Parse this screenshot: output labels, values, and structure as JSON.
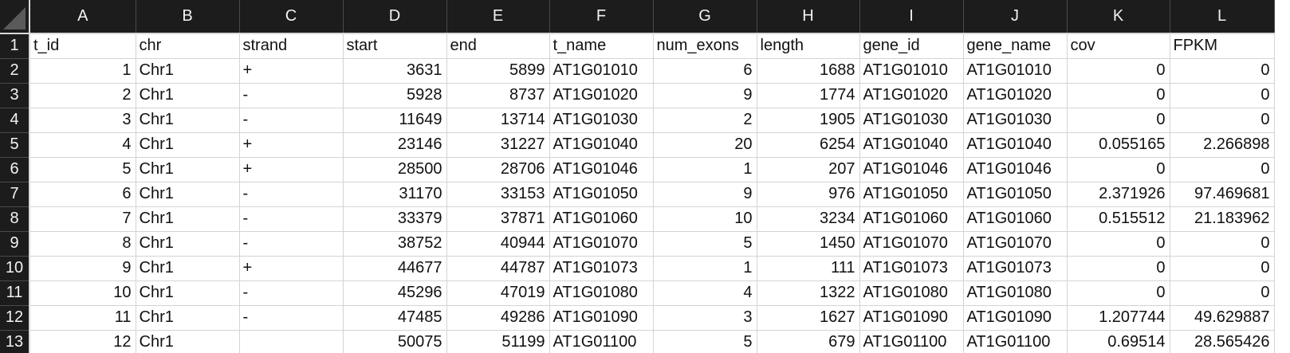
{
  "spreadsheet": {
    "column_letters": [
      "A",
      "B",
      "C",
      "D",
      "E",
      "F",
      "G",
      "H",
      "I",
      "J",
      "K",
      "L"
    ],
    "column_alignment": [
      "num",
      "txt",
      "txt",
      "num",
      "num",
      "txt",
      "num",
      "num",
      "txt",
      "txt",
      "num",
      "num"
    ],
    "header_values": [
      "t_id",
      "chr",
      "strand",
      "start",
      "end",
      "t_name",
      "num_exons",
      "length",
      "gene_id",
      "gene_name",
      "cov",
      "FPKM"
    ],
    "rows": [
      {
        "row_number": "1",
        "cells": [
          "t_id",
          "chr",
          "strand",
          "start",
          "end",
          "t_name",
          "num_exons",
          "length",
          "gene_id",
          "gene_name",
          "cov",
          "FPKM"
        ]
      },
      {
        "row_number": "2",
        "cells": [
          "1",
          "Chr1",
          "+",
          "3631",
          "5899",
          "AT1G01010",
          "6",
          "1688",
          "AT1G01010",
          "AT1G01010",
          "0",
          "0"
        ]
      },
      {
        "row_number": "3",
        "cells": [
          "2",
          "Chr1",
          "-",
          "5928",
          "8737",
          "AT1G01020",
          "9",
          "1774",
          "AT1G01020",
          "AT1G01020",
          "0",
          "0"
        ]
      },
      {
        "row_number": "4",
        "cells": [
          "3",
          "Chr1",
          "-",
          "11649",
          "13714",
          "AT1G01030",
          "2",
          "1905",
          "AT1G01030",
          "AT1G01030",
          "0",
          "0"
        ]
      },
      {
        "row_number": "5",
        "cells": [
          "4",
          "Chr1",
          "+",
          "23146",
          "31227",
          "AT1G01040",
          "20",
          "6254",
          "AT1G01040",
          "AT1G01040",
          "0.055165",
          "2.266898"
        ]
      },
      {
        "row_number": "6",
        "cells": [
          "5",
          "Chr1",
          "+",
          "28500",
          "28706",
          "AT1G01046",
          "1",
          "207",
          "AT1G01046",
          "AT1G01046",
          "0",
          "0"
        ]
      },
      {
        "row_number": "7",
        "cells": [
          "6",
          "Chr1",
          "-",
          "31170",
          "33153",
          "AT1G01050",
          "9",
          "976",
          "AT1G01050",
          "AT1G01050",
          "2.371926",
          "97.469681"
        ]
      },
      {
        "row_number": "8",
        "cells": [
          "7",
          "Chr1",
          "-",
          "33379",
          "37871",
          "AT1G01060",
          "10",
          "3234",
          "AT1G01060",
          "AT1G01060",
          "0.515512",
          "21.183962"
        ]
      },
      {
        "row_number": "9",
        "cells": [
          "8",
          "Chr1",
          "-",
          "38752",
          "40944",
          "AT1G01070",
          "5",
          "1450",
          "AT1G01070",
          "AT1G01070",
          "0",
          "0"
        ]
      },
      {
        "row_number": "10",
        "cells": [
          "9",
          "Chr1",
          "+",
          "44677",
          "44787",
          "AT1G01073",
          "1",
          "111",
          "AT1G01073",
          "AT1G01073",
          "0",
          "0"
        ]
      },
      {
        "row_number": "11",
        "cells": [
          "10",
          "Chr1",
          "-",
          "45296",
          "47019",
          "AT1G01080",
          "4",
          "1322",
          "AT1G01080",
          "AT1G01080",
          "0",
          "0"
        ]
      },
      {
        "row_number": "12",
        "cells": [
          "11",
          "Chr1",
          "-",
          "47485",
          "49286",
          "AT1G01090",
          "3",
          "1627",
          "AT1G01090",
          "AT1G01090",
          "1.207744",
          "49.629887"
        ]
      },
      {
        "row_number": "13",
        "cells": [
          "12",
          "Chr1",
          "",
          "50075",
          "51199",
          "AT1G01100",
          "5",
          "679",
          "AT1G01100",
          "AT1G01100",
          "0.69514",
          "28.565426"
        ]
      }
    ]
  }
}
